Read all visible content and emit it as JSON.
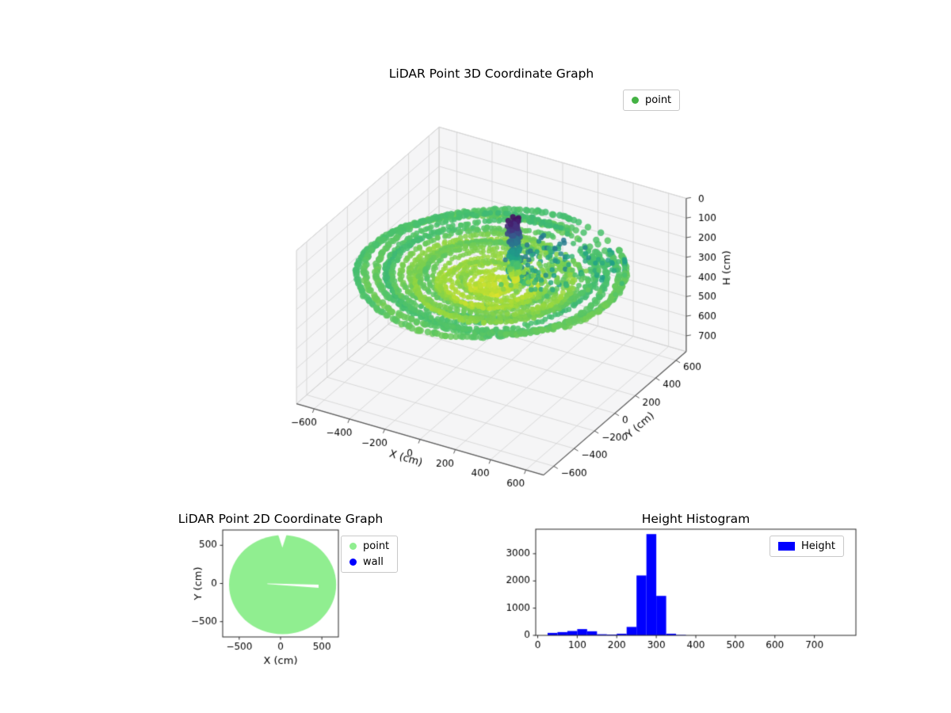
{
  "figure": {
    "background": "#ffffff"
  },
  "chart_data": [
    {
      "id": "lidar-3d",
      "type": "scatter",
      "projection": "3d",
      "title": "LiDAR Point 3D Coordinate Graph",
      "xlabel": "X (cm)",
      "ylabel": "Y (cm)",
      "zlabel": "H (cm)",
      "xlim": [
        -700,
        700
      ],
      "ylim": [
        -700,
        700
      ],
      "zlim": [
        0,
        780
      ],
      "z_axis_inverted": true,
      "xticks": [
        -600,
        -400,
        -200,
        0,
        200,
        400,
        600
      ],
      "yticks": [
        -600,
        -400,
        -200,
        0,
        200,
        400,
        600
      ],
      "zticks": [
        0,
        100,
        200,
        300,
        400,
        500,
        600,
        700
      ],
      "view": {
        "azim": -60,
        "elev": 30
      },
      "legend": {
        "position": "upper right",
        "items": [
          {
            "label": "point",
            "color": "#44b244",
            "marker": "dot"
          }
        ]
      },
      "colormap": {
        "name": "viridis",
        "vmin": 0,
        "vmax": 340,
        "stops": [
          "#440154",
          "#46327e",
          "#365c8d",
          "#277f8e",
          "#1fa187",
          "#4ac16d",
          "#a0da39",
          "#fde725"
        ]
      },
      "point_cloud": {
        "summary": "Room sweep: concentric floor rings at H approx 240-315 cm (teal rim to yellow center), a dark low-H column cluster near x=60 y=120 (H approx 15-320), and scattered mid-height returns right of center.",
        "seed": 42,
        "floor_rings": {
          "r_max": 640,
          "r_min": 70,
          "h_base_cm": 310,
          "h_rim_cm": 236,
          "ripple_cm": 23
        },
        "column_cluster": {
          "center_x": 62,
          "center_y": 120,
          "h_range": [
            15,
            320
          ],
          "n": 170
        },
        "mid_scatter": {
          "x_range": [
            80,
            430
          ],
          "y_range": [
            -90,
            330
          ],
          "h_range": [
            130,
            280
          ],
          "n": 130
        },
        "rim_scatter": {
          "x_range": [
            430,
            645
          ],
          "y_range": [
            90,
            420
          ],
          "h_range": [
            190,
            260
          ],
          "n": 40
        }
      }
    },
    {
      "id": "lidar-2d",
      "type": "scatter",
      "title": "LiDAR Point 2D Coordinate Graph",
      "xlabel": "X (cm)",
      "ylabel": "Y (cm)",
      "xlim": [
        -700,
        700
      ],
      "ylim": [
        -700,
        700
      ],
      "xticks": [
        -500,
        0,
        500
      ],
      "yticks": [
        -500,
        0,
        500
      ],
      "legend": {
        "position": "upper right",
        "items": [
          {
            "label": "point",
            "color": "#90ee90",
            "marker": "dot"
          },
          {
            "label": "wall",
            "color": "#0000ff",
            "marker": "dot"
          }
        ]
      },
      "disc": {
        "cx": 25,
        "cy": -15,
        "r": 648,
        "color": "#90ee90"
      },
      "voids": [
        {
          "name": "top-notch",
          "polygon": [
            [
              -35,
              660
            ],
            [
              80,
              660
            ],
            [
              22,
              470
            ]
          ]
        },
        {
          "name": "mid-sliver",
          "polygon": [
            [
              -160,
              -8
            ],
            [
              460,
              -58
            ],
            [
              460,
              -16
            ],
            [
              -160,
              1
            ]
          ]
        }
      ]
    },
    {
      "id": "height-histogram",
      "type": "bar",
      "title": "Height Histogram",
      "bar_color": "#0000ff",
      "xlim": [
        -5,
        805
      ],
      "ylim": [
        0,
        3900
      ],
      "xticks": [
        0,
        100,
        200,
        300,
        400,
        500,
        600,
        700
      ],
      "yticks": [
        0,
        1000,
        2000,
        3000
      ],
      "bins": {
        "start": 25,
        "width": 25
      },
      "counts": [
        90,
        120,
        160,
        230,
        150,
        40,
        30,
        60,
        310,
        2200,
        3720,
        1450,
        60,
        15
      ],
      "legend": {
        "position": "upper right",
        "items": [
          {
            "label": "Height",
            "color": "#0000ff",
            "marker": "patch"
          }
        ]
      }
    }
  ]
}
